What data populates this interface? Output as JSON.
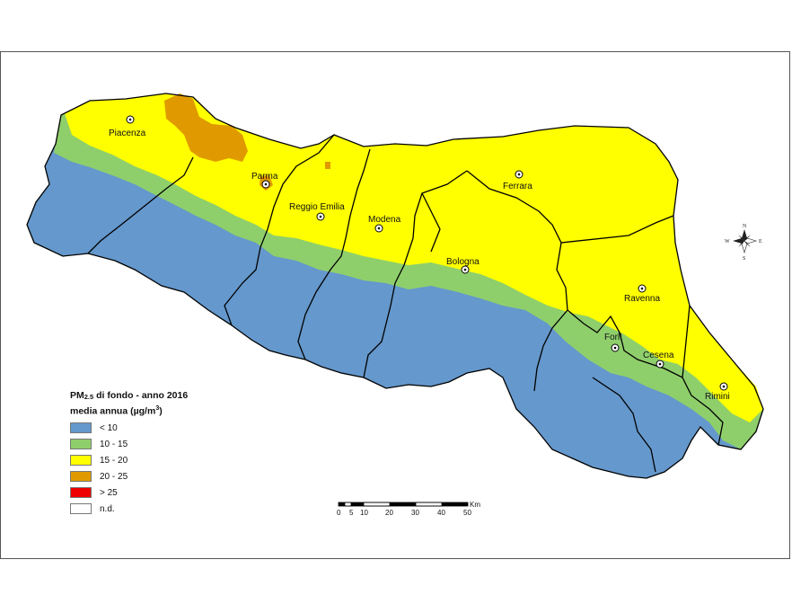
{
  "map": {
    "title_prefix": "PM",
    "title_subscript": "2.5",
    "title_rest": " di fondo - anno 2016",
    "subtitle": "media annua (µg/m",
    "subtitle_sup": "3",
    "subtitle_end": ")"
  },
  "legend": {
    "items": [
      {
        "label": "< 10",
        "color": "#6598cc"
      },
      {
        "label": "10 - 15",
        "color": "#8fcf6b"
      },
      {
        "label": "15 - 20",
        "color": "#ffff00"
      },
      {
        "label": "20 - 25",
        "color": "#e09a00"
      },
      {
        "label": "> 25",
        "color": "#ee0000"
      },
      {
        "label": "n.d.",
        "color": "#ffffff"
      }
    ]
  },
  "cities": [
    "Piacenza",
    "Parma",
    "Reggio Emilia",
    "Modena",
    "Ferrara",
    "Bologna",
    "Ravenna",
    "Forlì",
    "Cesena",
    "Rimini"
  ],
  "scale_bar": {
    "unit": "Km",
    "ticks": [
      "0",
      "5",
      "10",
      "20",
      "30",
      "40",
      "50"
    ]
  },
  "compass": {
    "n": "N",
    "s": "S",
    "e": "E",
    "w": "W"
  },
  "colors": {
    "low": "#6598cc",
    "mid": "#8fcf6b",
    "high": "#ffff00",
    "very_high": "#e09a00",
    "border": "#000000"
  }
}
